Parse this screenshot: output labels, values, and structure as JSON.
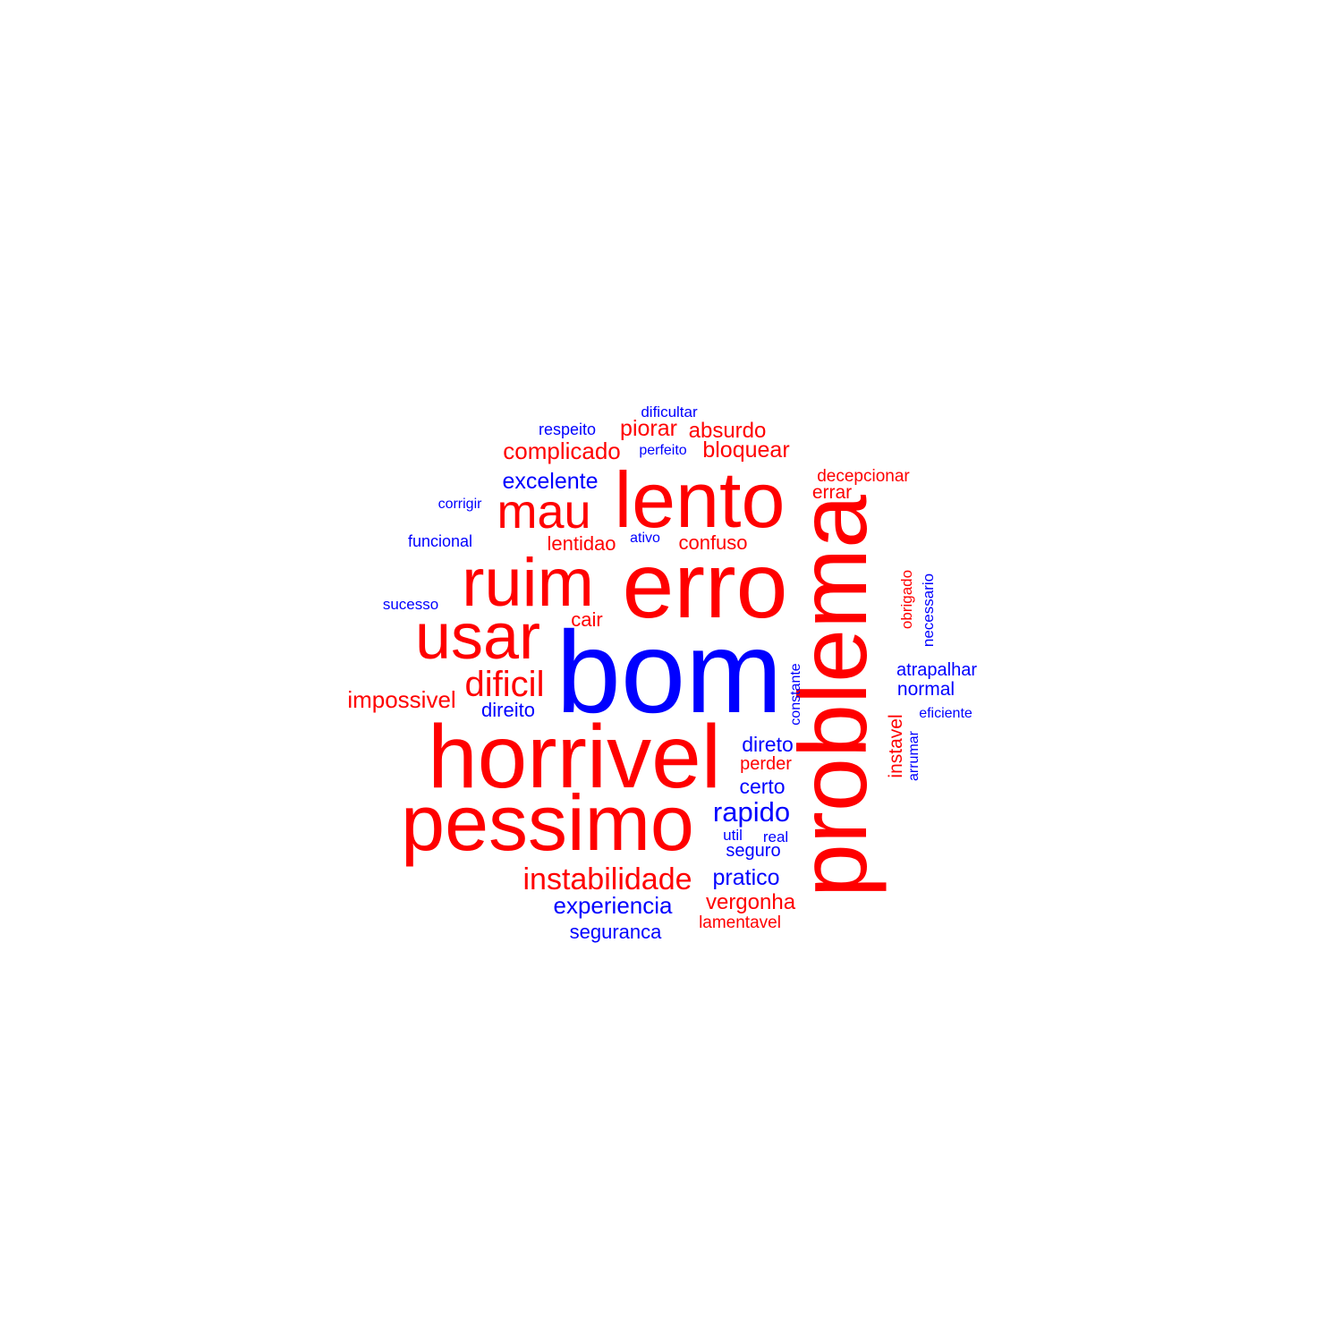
{
  "colors": {
    "negative": "#ff0000",
    "positive": "#0000ff"
  },
  "words": [
    {
      "text": "bom",
      "sentiment": "positive"
    },
    {
      "text": "problema",
      "sentiment": "negative"
    },
    {
      "text": "erro",
      "sentiment": "negative"
    },
    {
      "text": "horrivel",
      "sentiment": "negative"
    },
    {
      "text": "pessimo",
      "sentiment": "negative"
    },
    {
      "text": "lento",
      "sentiment": "negative"
    },
    {
      "text": "ruim",
      "sentiment": "negative"
    },
    {
      "text": "usar",
      "sentiment": "negative"
    },
    {
      "text": "mau",
      "sentiment": "negative"
    },
    {
      "text": "dificil",
      "sentiment": "negative"
    },
    {
      "text": "instabilidade",
      "sentiment": "negative"
    },
    {
      "text": "rapido",
      "sentiment": "positive"
    },
    {
      "text": "complicado",
      "sentiment": "negative"
    },
    {
      "text": "impossivel",
      "sentiment": "negative"
    },
    {
      "text": "experiencia",
      "sentiment": "positive"
    },
    {
      "text": "excelente",
      "sentiment": "positive"
    },
    {
      "text": "bloquear",
      "sentiment": "negative"
    },
    {
      "text": "piorar",
      "sentiment": "negative"
    },
    {
      "text": "absurdo",
      "sentiment": "negative"
    },
    {
      "text": "pratico",
      "sentiment": "positive"
    },
    {
      "text": "vergonha",
      "sentiment": "negative"
    },
    {
      "text": "confuso",
      "sentiment": "negative"
    },
    {
      "text": "lentidao",
      "sentiment": "negative"
    },
    {
      "text": "direto",
      "sentiment": "positive"
    },
    {
      "text": "certo",
      "sentiment": "positive"
    },
    {
      "text": "seguranca",
      "sentiment": "positive"
    },
    {
      "text": "cair",
      "sentiment": "negative"
    },
    {
      "text": "direito",
      "sentiment": "positive"
    },
    {
      "text": "errar",
      "sentiment": "negative"
    },
    {
      "text": "normal",
      "sentiment": "positive"
    },
    {
      "text": "atrapalhar",
      "sentiment": "positive"
    },
    {
      "text": "perder",
      "sentiment": "negative"
    },
    {
      "text": "seguro",
      "sentiment": "positive"
    },
    {
      "text": "instavel",
      "sentiment": "negative"
    },
    {
      "text": "decepcionar",
      "sentiment": "negative"
    },
    {
      "text": "lamentavel",
      "sentiment": "negative"
    },
    {
      "text": "funcional",
      "sentiment": "positive"
    },
    {
      "text": "respeito",
      "sentiment": "positive"
    },
    {
      "text": "dificultar",
      "sentiment": "positive"
    },
    {
      "text": "sucesso",
      "sentiment": "positive"
    },
    {
      "text": "necessario",
      "sentiment": "positive"
    },
    {
      "text": "obrigado",
      "sentiment": "negative"
    },
    {
      "text": "constante",
      "sentiment": "positive"
    },
    {
      "text": "arrumar",
      "sentiment": "positive"
    },
    {
      "text": "eficiente",
      "sentiment": "positive"
    },
    {
      "text": "corrigir",
      "sentiment": "positive"
    },
    {
      "text": "perfeito",
      "sentiment": "positive"
    },
    {
      "text": "ativo",
      "sentiment": "positive"
    },
    {
      "text": "util",
      "sentiment": "positive"
    },
    {
      "text": "real",
      "sentiment": "positive"
    }
  ]
}
